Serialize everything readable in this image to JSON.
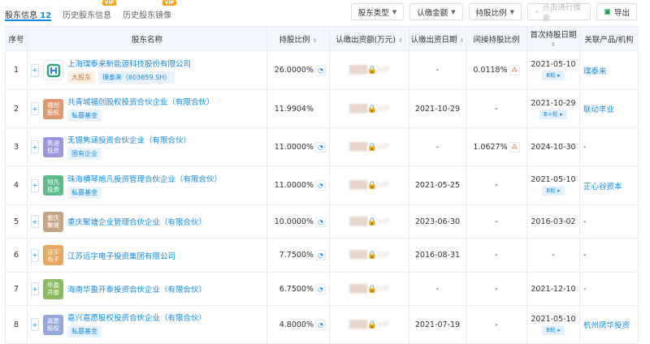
{
  "tabs": [
    {
      "label": "股东信息",
      "count": "12"
    },
    {
      "label": "历史股东信息",
      "vip": "VIP"
    },
    {
      "label": "历史股东镜像",
      "vip": "VIP"
    }
  ],
  "toolbar": {
    "filters": [
      "股东类型",
      "认缴金额",
      "持股比例"
    ],
    "search_placeholder": "点击进行搜索",
    "export": "导出"
  },
  "columns": [
    "序号",
    "股东名称",
    "持股比例",
    "认缴出资额(万元)",
    "认缴出资日期",
    "间接持股比例",
    "首次持股日期",
    "关联产品/机构"
  ],
  "locked_text": "VIP",
  "rows": [
    {
      "no": "1",
      "name": "上海璞泰来新能源科技股份有限公司",
      "logo": "",
      "logo_color": "#2aa876",
      "tags": [
        {
          "t": "大股东",
          "big": true
        },
        {
          "t": "璞泰来（603659.SH）"
        }
      ],
      "ratio": "26.0000%",
      "date": "-",
      "indirect": "0.0118%",
      "first": "2021-05-10",
      "round": "B轮",
      "rel": "璞泰来"
    },
    {
      "no": "2",
      "name": "共青城福创股权投资合伙企业（有限合伙）",
      "logo": "福创股权",
      "logo_color": "#e0996f",
      "tags": [
        {
          "t": "私募基金"
        }
      ],
      "ratio": "11.9904%",
      "nopie": true,
      "date": "2021-10-29",
      "indirect": "-",
      "first": "2021-10-29",
      "round": "B+轮",
      "rel": "联动丰业"
    },
    {
      "no": "3",
      "name": "无锡隽涵投资合伙企业（有限合伙）",
      "logo": "隽涵投资",
      "logo_color": "#9b96e0",
      "tags": [
        {
          "t": "国有企业"
        }
      ],
      "ratio": "11.0000%",
      "date": "-",
      "indirect": "1.0627%",
      "first": "2024-10-30",
      "rel": "-"
    },
    {
      "no": "4",
      "name": "珠海横琴旭凡投资管理合伙企业（有限合伙）",
      "logo": "旭凡投资",
      "logo_color": "#5dbb8a",
      "tags": [
        {
          "t": "私募基金"
        }
      ],
      "ratio": "11.0000%",
      "date": "2021-05-25",
      "indirect": "-",
      "first": "2021-05-10",
      "round": "B轮",
      "rel": "正心谷资本"
    },
    {
      "no": "5",
      "name": "重庆聚塘企业管理合伙企业（有限合伙）",
      "logo": "重庆聚塘",
      "logo_color": "#c4a585",
      "tags": [],
      "ratio": "10.0000%",
      "date": "2023-06-30",
      "indirect": "-",
      "first": "2016-03-02",
      "rel": "-"
    },
    {
      "no": "6",
      "name": "江苏远宇电子投资集团有限公司",
      "logo": "远宇电子",
      "logo_color": "#e8a862",
      "tags": [],
      "ratio": "7.7500%",
      "date": "2016-08-31",
      "indirect": "-",
      "first": "-",
      "rel": "-"
    },
    {
      "no": "7",
      "name": "海南华盈开泰投资合伙企业（有限合伙）",
      "logo": "华盈开泰",
      "logo_color": "#8dbb5f",
      "tags": [],
      "ratio": "6.7500%",
      "date": "-",
      "indirect": "-",
      "first": "2021-12-10",
      "rel": "-"
    },
    {
      "no": "8",
      "name": "嘉兴嘉愿股权投资合伙企业（有限合伙）",
      "logo": "嘉愿股权",
      "logo_color": "#93a9dd",
      "tags": [
        {
          "t": "私募基金"
        }
      ],
      "ratio": "4.8000%",
      "date": "2021-07-19",
      "indirect": "-",
      "first": "2021-05-10",
      "round": "B轮",
      "rel": "杭州凤华投资"
    }
  ]
}
